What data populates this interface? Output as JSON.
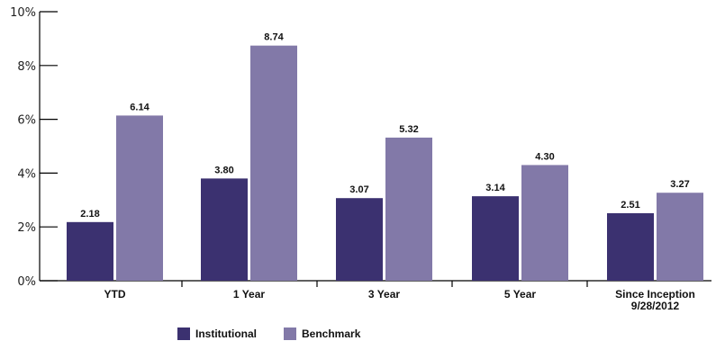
{
  "chart_data": {
    "type": "bar",
    "categories": [
      [
        "YTD"
      ],
      [
        "1 Year"
      ],
      [
        "3 Year"
      ],
      [
        "5 Year"
      ],
      [
        "Since Inception",
        "9/28/2012"
      ]
    ],
    "series": [
      {
        "name": "Institutional",
        "color": "#3b3170",
        "values": [
          2.18,
          3.8,
          3.07,
          3.14,
          2.51
        ]
      },
      {
        "name": "Benchmark",
        "color": "#8279a8",
        "values": [
          6.14,
          8.74,
          5.32,
          4.3,
          3.27
        ]
      }
    ],
    "value_labels": {
      "Institutional": [
        "2.18",
        "3.80",
        "3.07",
        "3.14",
        "2.51"
      ],
      "Benchmark": [
        "6.14",
        "8.74",
        "5.32",
        "4.30",
        "3.27"
      ]
    },
    "yticks": [
      "0%",
      "2%",
      "4%",
      "6%",
      "8%",
      "10%"
    ],
    "ylim": [
      0,
      10
    ],
    "grid": false,
    "legend_position": "bottom-left"
  }
}
